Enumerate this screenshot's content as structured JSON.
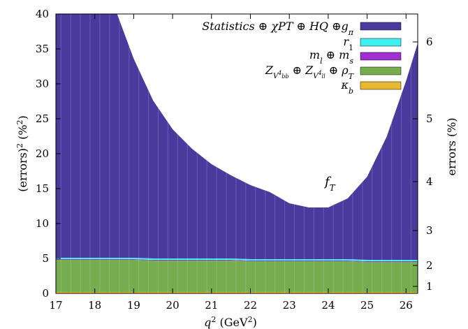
{
  "chart_data": {
    "type": "area",
    "stacked": true,
    "xlabel": "q^2 (GeV^2)",
    "ylabel": "(errors)^2 (%^2)",
    "y2label": "errors (%)",
    "xlim": [
      17,
      26.3
    ],
    "ylim": [
      0,
      40
    ],
    "xticks": [
      17,
      18,
      19,
      20,
      21,
      22,
      23,
      24,
      25,
      26
    ],
    "yticks": [
      0,
      5,
      10,
      15,
      20,
      25,
      30,
      35,
      40
    ],
    "y2ticks": [
      1,
      2,
      3,
      4,
      5,
      6
    ],
    "annotation": "f_T",
    "legend_position": "top-right",
    "x": [
      17.0,
      17.5,
      18.0,
      18.5,
      19.0,
      19.5,
      20.0,
      20.5,
      21.0,
      21.5,
      22.0,
      22.5,
      23.0,
      23.5,
      24.0,
      24.5,
      25.0,
      25.5,
      26.0,
      26.3
    ],
    "series": [
      {
        "name": "κ_b",
        "color": "#e8b830",
        "values": [
          0.2,
          0.2,
          0.2,
          0.2,
          0.2,
          0.2,
          0.2,
          0.2,
          0.2,
          0.2,
          0.2,
          0.2,
          0.2,
          0.2,
          0.2,
          0.2,
          0.2,
          0.2,
          0.2,
          0.2
        ]
      },
      {
        "name": "Z_{V_bb^4} ⊕ Z_{V_ll^4} ⊕ ρ_T",
        "color": "#76ad4e",
        "values": [
          4.6,
          4.6,
          4.6,
          4.6,
          4.6,
          4.5,
          4.5,
          4.5,
          4.5,
          4.5,
          4.4,
          4.4,
          4.4,
          4.4,
          4.4,
          4.4,
          4.3,
          4.3,
          4.3,
          4.3
        ]
      },
      {
        "name": "m_l ⊕ m_s",
        "color": "#a030d0",
        "values": [
          0.1,
          0.1,
          0.1,
          0.1,
          0.1,
          0.1,
          0.1,
          0.1,
          0.1,
          0.1,
          0.1,
          0.1,
          0.1,
          0.1,
          0.1,
          0.1,
          0.1,
          0.1,
          0.1,
          0.1
        ]
      },
      {
        "name": "r_1",
        "color": "#40f0f0",
        "values": [
          0.2,
          0.2,
          0.2,
          0.2,
          0.2,
          0.2,
          0.2,
          0.2,
          0.2,
          0.2,
          0.2,
          0.2,
          0.2,
          0.2,
          0.2,
          0.2,
          0.2,
          0.2,
          0.2,
          0.2
        ]
      },
      {
        "name": "Statistics ⊕ χPT ⊕ HQ ⊕g_π",
        "color": "#4a3a9e",
        "values": [
          57,
          50,
          43,
          36,
          28.5,
          22.6,
          18.5,
          15.7,
          13.5,
          11.9,
          10.6,
          9.6,
          8.0,
          7.4,
          7.4,
          8.7,
          11.9,
          17.6,
          25.6,
          31.0
        ]
      }
    ]
  },
  "legend": [
    {
      "label": "Statistics ⊕ χPT ⊕ HQ ⊕g_π",
      "color": "#4a3a9e"
    },
    {
      "label": "r_1",
      "color": "#40f0f0"
    },
    {
      "label": "m_l ⊕ m_s",
      "color": "#a030d0"
    },
    {
      "label": "Z_{V_bb^4} ⊕ Z_{V_ll^4} ⊕ ρ_T",
      "color": "#76ad4e"
    },
    {
      "label": "κ_b",
      "color": "#e8b830"
    }
  ]
}
